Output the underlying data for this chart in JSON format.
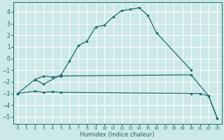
{
  "title": "",
  "xlabel": "Humidex (Indice chaleur)",
  "xlim": [
    -0.5,
    23.5
  ],
  "ylim": [
    -5.6,
    4.8
  ],
  "yticks": [
    -5,
    -4,
    -3,
    -2,
    -1,
    0,
    1,
    2,
    3,
    4
  ],
  "xticks": [
    0,
    1,
    2,
    3,
    4,
    5,
    6,
    7,
    8,
    9,
    10,
    11,
    12,
    13,
    14,
    15,
    16,
    17,
    18,
    19,
    20,
    21,
    22,
    23
  ],
  "bg_color": "#cde8e8",
  "line_color": "#1a6b6b",
  "grid_color": "#ffffff",
  "line1_x": [
    0,
    2,
    3,
    5,
    6,
    7,
    8,
    9,
    10,
    11,
    12,
    13,
    14,
    15,
    16,
    20
  ],
  "line1_y": [
    -3.0,
    -1.8,
    -2.2,
    -1.4,
    -0.2,
    1.1,
    1.5,
    2.7,
    2.85,
    3.55,
    4.1,
    4.2,
    4.35,
    3.7,
    2.2,
    -1.0
  ],
  "line2_x": [
    2,
    3,
    4,
    5,
    20,
    22,
    23
  ],
  "line2_y": [
    -1.8,
    -1.5,
    -1.6,
    -1.5,
    -1.4,
    -3.2,
    -5.1
  ],
  "line3_x": [
    0,
    2,
    3,
    4,
    5,
    20,
    21,
    22,
    23
  ],
  "line3_y": [
    -3.0,
    -2.8,
    -2.9,
    -2.85,
    -2.9,
    -3.0,
    -3.0,
    -3.2,
    -5.1
  ]
}
